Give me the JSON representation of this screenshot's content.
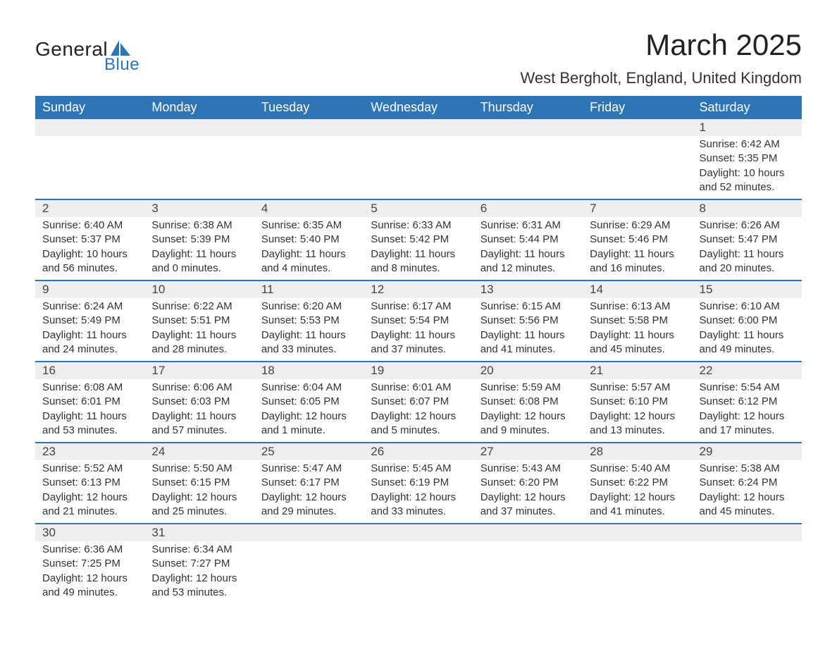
{
  "logo": {
    "general": "General",
    "blue": "Blue"
  },
  "header": {
    "month_title": "March 2025",
    "location": "West Bergholt, England, United Kingdom"
  },
  "colors": {
    "header_bg": "#2e75b6",
    "header_text": "#ffffff",
    "daynum_bg": "#eeeeee",
    "row_divider": "#2e75b6",
    "body_text": "#333333",
    "logo_blue": "#2e75b6"
  },
  "weekdays": [
    "Sunday",
    "Monday",
    "Tuesday",
    "Wednesday",
    "Thursday",
    "Friday",
    "Saturday"
  ],
  "weeks": [
    [
      {
        "empty": true
      },
      {
        "empty": true
      },
      {
        "empty": true
      },
      {
        "empty": true
      },
      {
        "empty": true
      },
      {
        "empty": true
      },
      {
        "day": "1",
        "sunrise": "Sunrise: 6:42 AM",
        "sunset": "Sunset: 5:35 PM",
        "daylight": "Daylight: 10 hours and 52 minutes."
      }
    ],
    [
      {
        "day": "2",
        "sunrise": "Sunrise: 6:40 AM",
        "sunset": "Sunset: 5:37 PM",
        "daylight": "Daylight: 10 hours and 56 minutes."
      },
      {
        "day": "3",
        "sunrise": "Sunrise: 6:38 AM",
        "sunset": "Sunset: 5:39 PM",
        "daylight": "Daylight: 11 hours and 0 minutes."
      },
      {
        "day": "4",
        "sunrise": "Sunrise: 6:35 AM",
        "sunset": "Sunset: 5:40 PM",
        "daylight": "Daylight: 11 hours and 4 minutes."
      },
      {
        "day": "5",
        "sunrise": "Sunrise: 6:33 AM",
        "sunset": "Sunset: 5:42 PM",
        "daylight": "Daylight: 11 hours and 8 minutes."
      },
      {
        "day": "6",
        "sunrise": "Sunrise: 6:31 AM",
        "sunset": "Sunset: 5:44 PM",
        "daylight": "Daylight: 11 hours and 12 minutes."
      },
      {
        "day": "7",
        "sunrise": "Sunrise: 6:29 AM",
        "sunset": "Sunset: 5:46 PM",
        "daylight": "Daylight: 11 hours and 16 minutes."
      },
      {
        "day": "8",
        "sunrise": "Sunrise: 6:26 AM",
        "sunset": "Sunset: 5:47 PM",
        "daylight": "Daylight: 11 hours and 20 minutes."
      }
    ],
    [
      {
        "day": "9",
        "sunrise": "Sunrise: 6:24 AM",
        "sunset": "Sunset: 5:49 PM",
        "daylight": "Daylight: 11 hours and 24 minutes."
      },
      {
        "day": "10",
        "sunrise": "Sunrise: 6:22 AM",
        "sunset": "Sunset: 5:51 PM",
        "daylight": "Daylight: 11 hours and 28 minutes."
      },
      {
        "day": "11",
        "sunrise": "Sunrise: 6:20 AM",
        "sunset": "Sunset: 5:53 PM",
        "daylight": "Daylight: 11 hours and 33 minutes."
      },
      {
        "day": "12",
        "sunrise": "Sunrise: 6:17 AM",
        "sunset": "Sunset: 5:54 PM",
        "daylight": "Daylight: 11 hours and 37 minutes."
      },
      {
        "day": "13",
        "sunrise": "Sunrise: 6:15 AM",
        "sunset": "Sunset: 5:56 PM",
        "daylight": "Daylight: 11 hours and 41 minutes."
      },
      {
        "day": "14",
        "sunrise": "Sunrise: 6:13 AM",
        "sunset": "Sunset: 5:58 PM",
        "daylight": "Daylight: 11 hours and 45 minutes."
      },
      {
        "day": "15",
        "sunrise": "Sunrise: 6:10 AM",
        "sunset": "Sunset: 6:00 PM",
        "daylight": "Daylight: 11 hours and 49 minutes."
      }
    ],
    [
      {
        "day": "16",
        "sunrise": "Sunrise: 6:08 AM",
        "sunset": "Sunset: 6:01 PM",
        "daylight": "Daylight: 11 hours and 53 minutes."
      },
      {
        "day": "17",
        "sunrise": "Sunrise: 6:06 AM",
        "sunset": "Sunset: 6:03 PM",
        "daylight": "Daylight: 11 hours and 57 minutes."
      },
      {
        "day": "18",
        "sunrise": "Sunrise: 6:04 AM",
        "sunset": "Sunset: 6:05 PM",
        "daylight": "Daylight: 12 hours and 1 minute."
      },
      {
        "day": "19",
        "sunrise": "Sunrise: 6:01 AM",
        "sunset": "Sunset: 6:07 PM",
        "daylight": "Daylight: 12 hours and 5 minutes."
      },
      {
        "day": "20",
        "sunrise": "Sunrise: 5:59 AM",
        "sunset": "Sunset: 6:08 PM",
        "daylight": "Daylight: 12 hours and 9 minutes."
      },
      {
        "day": "21",
        "sunrise": "Sunrise: 5:57 AM",
        "sunset": "Sunset: 6:10 PM",
        "daylight": "Daylight: 12 hours and 13 minutes."
      },
      {
        "day": "22",
        "sunrise": "Sunrise: 5:54 AM",
        "sunset": "Sunset: 6:12 PM",
        "daylight": "Daylight: 12 hours and 17 minutes."
      }
    ],
    [
      {
        "day": "23",
        "sunrise": "Sunrise: 5:52 AM",
        "sunset": "Sunset: 6:13 PM",
        "daylight": "Daylight: 12 hours and 21 minutes."
      },
      {
        "day": "24",
        "sunrise": "Sunrise: 5:50 AM",
        "sunset": "Sunset: 6:15 PM",
        "daylight": "Daylight: 12 hours and 25 minutes."
      },
      {
        "day": "25",
        "sunrise": "Sunrise: 5:47 AM",
        "sunset": "Sunset: 6:17 PM",
        "daylight": "Daylight: 12 hours and 29 minutes."
      },
      {
        "day": "26",
        "sunrise": "Sunrise: 5:45 AM",
        "sunset": "Sunset: 6:19 PM",
        "daylight": "Daylight: 12 hours and 33 minutes."
      },
      {
        "day": "27",
        "sunrise": "Sunrise: 5:43 AM",
        "sunset": "Sunset: 6:20 PM",
        "daylight": "Daylight: 12 hours and 37 minutes."
      },
      {
        "day": "28",
        "sunrise": "Sunrise: 5:40 AM",
        "sunset": "Sunset: 6:22 PM",
        "daylight": "Daylight: 12 hours and 41 minutes."
      },
      {
        "day": "29",
        "sunrise": "Sunrise: 5:38 AM",
        "sunset": "Sunset: 6:24 PM",
        "daylight": "Daylight: 12 hours and 45 minutes."
      }
    ],
    [
      {
        "day": "30",
        "sunrise": "Sunrise: 6:36 AM",
        "sunset": "Sunset: 7:25 PM",
        "daylight": "Daylight: 12 hours and 49 minutes."
      },
      {
        "day": "31",
        "sunrise": "Sunrise: 6:34 AM",
        "sunset": "Sunset: 7:27 PM",
        "daylight": "Daylight: 12 hours and 53 minutes."
      },
      {
        "empty": true
      },
      {
        "empty": true
      },
      {
        "empty": true
      },
      {
        "empty": true
      },
      {
        "empty": true
      }
    ]
  ]
}
